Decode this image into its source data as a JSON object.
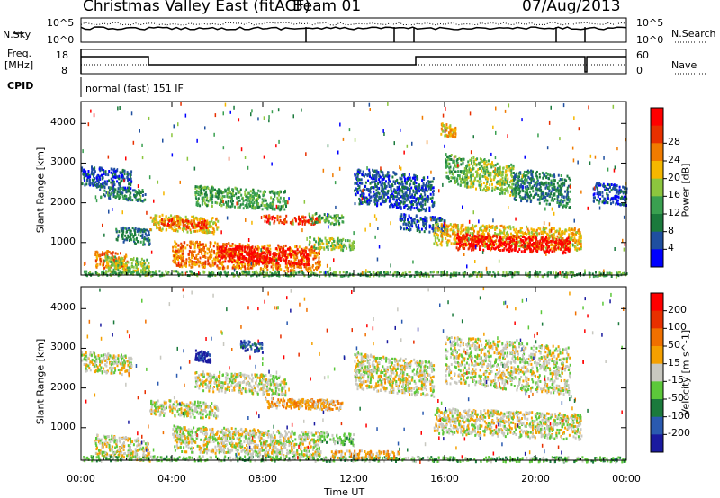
{
  "header": {
    "title": "Christmas Valley East (fitACF)",
    "beam": "Beam 01",
    "date": "07/Aug/2013"
  },
  "top_panels": {
    "nsky_label": "N.Sky",
    "nsky_ticks": [
      "10^5",
      "10^0"
    ],
    "nsearch_label": "N.Search",
    "nsearch_ticks": [
      "10^5",
      "10^0"
    ],
    "freq_label": "Freq.",
    "freq_unit": "[MHz]",
    "freq_ticks": [
      "18",
      "8"
    ],
    "nave_label": "Nave",
    "nave_ticks": [
      "60",
      "0"
    ],
    "cpid_label": "CPID",
    "cpid_text": "normal (fast) 151 IF"
  },
  "chart_data": [
    {
      "type": "heatmap",
      "name": "power-panel",
      "ylabel": "Slant Range [km]",
      "xlabel": "",
      "x_ticks": [
        "00:00",
        "04:00",
        "08:00",
        "12:00",
        "16:00",
        "20:00",
        "00:00"
      ],
      "y_ticks": [
        1000,
        2000,
        3000,
        4000
      ],
      "xlim": [
        0,
        24
      ],
      "ylim": [
        180,
        4550
      ],
      "colorbar": {
        "label": "Power [dB]",
        "ticks": [
          "4",
          "8",
          "12",
          "16",
          "20",
          "24",
          "28"
        ],
        "colors": [
          "#0000ff",
          "#1f4fa0",
          "#1b7a3c",
          "#3aa050",
          "#8cc63e",
          "#f5b700",
          "#f07b00",
          "#e83000",
          "#ff0000"
        ]
      },
      "blobs": [
        {
          "t0": 0.0,
          "t1": 2.2,
          "r0": 2400,
          "r1": 2900,
          "c": 1
        },
        {
          "t0": 0.8,
          "t1": 2.8,
          "r0": 2100,
          "r1": 2400,
          "c": 2
        },
        {
          "t0": 0.6,
          "t1": 2.0,
          "r0": 350,
          "r1": 800,
          "c": 6
        },
        {
          "t0": 1.0,
          "t1": 3.0,
          "r0": 250,
          "r1": 650,
          "c": 4
        },
        {
          "t0": 3.0,
          "t1": 6.0,
          "r0": 1300,
          "r1": 1700,
          "c": 5
        },
        {
          "t0": 3.5,
          "t1": 5.5,
          "r0": 1400,
          "r1": 1600,
          "c": 7
        },
        {
          "t0": 4.0,
          "t1": 10.5,
          "r0": 350,
          "r1": 1000,
          "c": 6
        },
        {
          "t0": 6.0,
          "t1": 10.0,
          "r0": 500,
          "r1": 900,
          "c": 8
        },
        {
          "t0": 5.0,
          "t1": 9.0,
          "r0": 1900,
          "r1": 2400,
          "c": 3
        },
        {
          "t0": 8.0,
          "t1": 10.5,
          "r0": 1500,
          "r1": 1700,
          "c": 7
        },
        {
          "t0": 10.0,
          "t1": 11.5,
          "r0": 1500,
          "r1": 1750,
          "c": 3
        },
        {
          "t0": 10.0,
          "t1": 12.0,
          "r0": 850,
          "r1": 1150,
          "c": 4
        },
        {
          "t0": 1.5,
          "t1": 3.0,
          "r0": 1000,
          "r1": 1400,
          "c": 2
        },
        {
          "t0": 12.0,
          "t1": 15.5,
          "r0": 1900,
          "r1": 2800,
          "c": 1
        },
        {
          "t0": 14.0,
          "t1": 16.0,
          "r0": 1300,
          "r1": 1700,
          "c": 1
        },
        {
          "t0": 15.5,
          "t1": 22.0,
          "r0": 900,
          "r1": 1450,
          "c": 5
        },
        {
          "t0": 16.5,
          "t1": 21.5,
          "r0": 800,
          "r1": 1200,
          "c": 8
        },
        {
          "t0": 15.8,
          "t1": 16.5,
          "r0": 3700,
          "r1": 4000,
          "c": 5
        },
        {
          "t0": 16.0,
          "t1": 17.0,
          "r0": 2500,
          "r1": 3200,
          "c": 3
        },
        {
          "t0": 17.0,
          "t1": 19.0,
          "r0": 2300,
          "r1": 3100,
          "c": 4
        },
        {
          "t0": 19.0,
          "t1": 21.5,
          "r0": 2000,
          "r1": 2800,
          "c": 2
        },
        {
          "t0": 22.5,
          "t1": 24.0,
          "r0": 2000,
          "r1": 2500,
          "c": 1
        },
        {
          "t0": 0.0,
          "t1": 24.0,
          "r0": 180,
          "r1": 300,
          "c": 3
        }
      ]
    },
    {
      "type": "heatmap",
      "name": "velocity-panel",
      "ylabel": "Slant Range [km]",
      "xlabel": "Time UT",
      "x_ticks": [
        "00:00",
        "04:00",
        "08:00",
        "12:00",
        "16:00",
        "20:00",
        "00:00"
      ],
      "y_ticks": [
        1000,
        2000,
        3000,
        4000
      ],
      "xlim": [
        0,
        24
      ],
      "ylim": [
        180,
        4550
      ],
      "colorbar": {
        "label": "Velocity [m s^-1]",
        "ticks": [
          "200",
          "100",
          "50",
          "15",
          "-15",
          "-50",
          "-100",
          "-200"
        ],
        "colors": [
          "#1a1aa0",
          "#2a5ab0",
          "#1b7a3c",
          "#5cc83a",
          "#c8c8c0",
          "#f5a000",
          "#f07000",
          "#e83000",
          "#ff0000"
        ]
      },
      "blobs": [
        {
          "t0": 0.0,
          "t1": 2.2,
          "r0": 2400,
          "r1": 2900,
          "c": 4
        },
        {
          "t0": 0.6,
          "t1": 3.0,
          "r0": 250,
          "r1": 800,
          "c": 4
        },
        {
          "t0": 3.0,
          "t1": 6.0,
          "r0": 1300,
          "r1": 1700,
          "c": 4
        },
        {
          "t0": 4.0,
          "t1": 10.5,
          "r0": 350,
          "r1": 1000,
          "c": 4
        },
        {
          "t0": 5.0,
          "t1": 9.0,
          "r0": 1900,
          "r1": 2400,
          "c": 4
        },
        {
          "t0": 8.0,
          "t1": 11.5,
          "r0": 1500,
          "r1": 1750,
          "c": 5
        },
        {
          "t0": 10.5,
          "t1": 12.0,
          "r0": 600,
          "r1": 900,
          "c": 3
        },
        {
          "t0": 12.0,
          "t1": 15.5,
          "r0": 1900,
          "r1": 2800,
          "c": 4
        },
        {
          "t0": 15.5,
          "t1": 22.0,
          "r0": 800,
          "r1": 1450,
          "c": 4
        },
        {
          "t0": 16.0,
          "t1": 21.5,
          "r0": 2000,
          "r1": 3200,
          "c": 4
        },
        {
          "t0": 5.0,
          "t1": 5.7,
          "r0": 2700,
          "r1": 2950,
          "c": 0
        },
        {
          "t0": 7.0,
          "t1": 8.0,
          "r0": 2950,
          "r1": 3200,
          "c": 1
        },
        {
          "t0": 9.0,
          "t1": 11.0,
          "r0": 1550,
          "r1": 1750,
          "c": 5
        },
        {
          "t0": 0.0,
          "t1": 24.0,
          "r0": 180,
          "r1": 300,
          "c": 3
        },
        {
          "t0": 11.0,
          "t1": 14.0,
          "r0": 250,
          "r1": 450,
          "c": 5
        }
      ]
    }
  ]
}
